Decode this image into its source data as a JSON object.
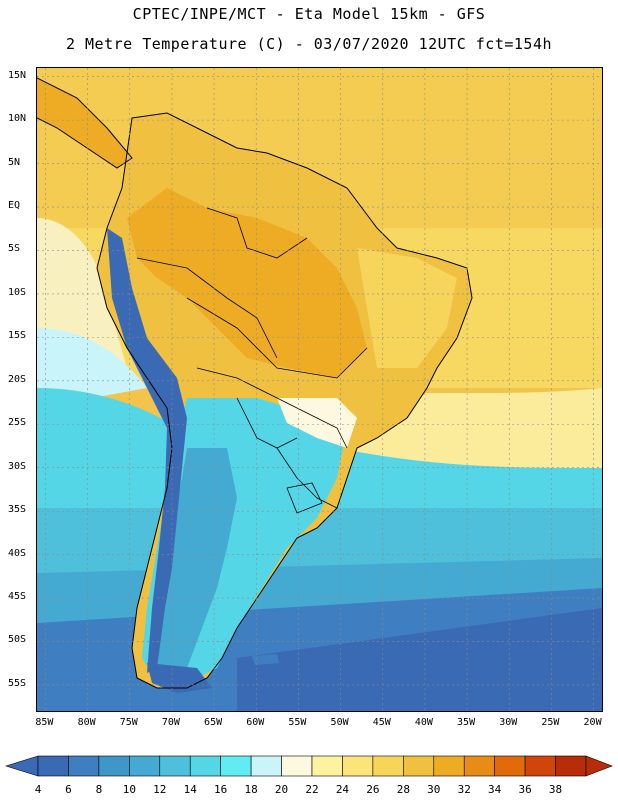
{
  "header": {
    "title_line1": "CPTEC/INPE/MCT -  Eta Model 15km - GFS",
    "title_line2": "2 Metre Temperature (C) - 03/07/2020 12UTC fct=154h"
  },
  "axes": {
    "lat_labels": [
      "15N",
      "10N",
      "5N",
      "EQ",
      "5S",
      "10S",
      "15S",
      "20S",
      "25S",
      "30S",
      "35S",
      "40S",
      "45S",
      "50S",
      "55S"
    ],
    "lon_labels": [
      "85W",
      "80W",
      "75W",
      "70W",
      "65W",
      "60W",
      "55W",
      "50W",
      "45W",
      "40W",
      "35W",
      "30W",
      "25W",
      "20W"
    ],
    "lat_range": [
      16,
      -58
    ],
    "lon_range": [
      -86,
      -19
    ]
  },
  "colorbar": {
    "labels": [
      "4",
      "6",
      "8",
      "10",
      "12",
      "14",
      "16",
      "18",
      "20",
      "22",
      "24",
      "26",
      "28",
      "30",
      "32",
      "34",
      "36",
      "38"
    ],
    "colors": [
      "#3a6ab4",
      "#3f7fc1",
      "#3f96c8",
      "#45aad2",
      "#4fc0dc",
      "#55d6e6",
      "#5fecf2",
      "#c8f4fa",
      "#fdf8e0",
      "#fdf2a0",
      "#fbe47a",
      "#f7d45a",
      "#f0c040",
      "#eeac24",
      "#e88c18",
      "#e06a0c",
      "#d0460a",
      "#b82c08"
    ]
  },
  "map": {
    "ocean_colors": {
      "tropical": "#f7e08a",
      "warm": "#fae79a",
      "mild": "#fcf6c0",
      "cool": "#55d6e6",
      "cold": "#45aad2",
      "colder": "#3f7fc1",
      "coldest": "#3a6ab4"
    },
    "land_colors": {
      "hot": "#eeac24",
      "warm": "#f0c040",
      "mild": "#f7d45a",
      "cool": "#5fecf2",
      "cold": "#45aad2",
      "andes": "#3a6ab4"
    }
  }
}
